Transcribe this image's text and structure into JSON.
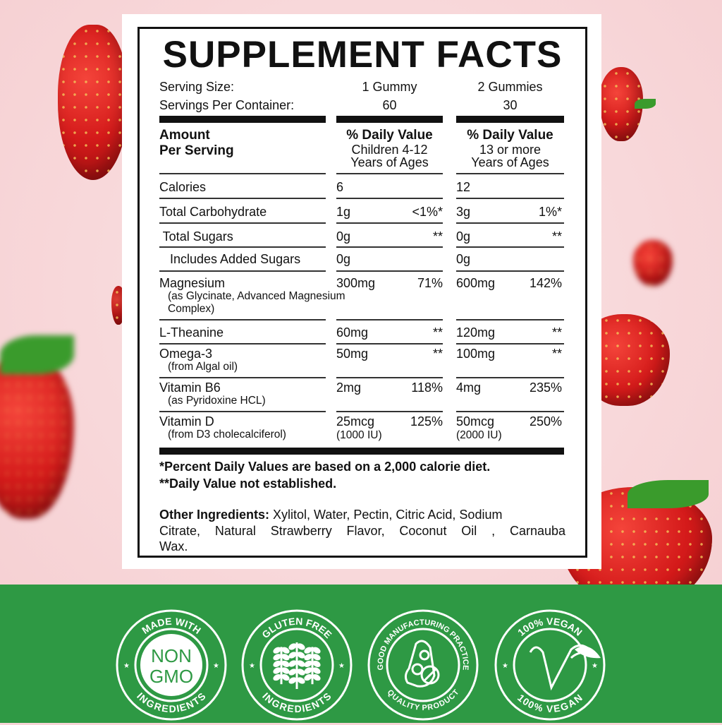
{
  "label": {
    "title": "SUPPLEMENT FACTS",
    "serving_size_label": "Serving Size:",
    "serving_size_children": "1 Gummy",
    "serving_size_adults": "2 Gummies",
    "servings_per_container_label": "Servings Per Container:",
    "servings_children": "60",
    "servings_adults": "30",
    "amount_header_line1": "Amount",
    "amount_header_line2": "Per Serving",
    "children_header": [
      "% Daily Value",
      "Children 4-12",
      "Years of Ages"
    ],
    "adults_header": [
      "% Daily Value",
      "13 or more",
      "Years of Ages"
    ],
    "rows": [
      {
        "name": "Calories",
        "sub": [],
        "c_amt": "6",
        "c_dv": "",
        "c_amt2": "",
        "a_amt": "12",
        "a_dv": "",
        "a_amt2": ""
      },
      {
        "name": "Total Carbohydrate",
        "sub": [],
        "c_amt": "1g",
        "c_dv": "<1%*",
        "c_amt2": "",
        "a_amt": "3g",
        "a_dv": "1%*",
        "a_amt2": ""
      },
      {
        "name": " Total Sugars",
        "sub": [],
        "c_amt": "0g",
        "c_dv": "**",
        "c_amt2": "",
        "a_amt": "0g",
        "a_dv": "**",
        "a_amt2": ""
      },
      {
        "name": "   Includes Added Sugars",
        "sub": [],
        "c_amt": "0g",
        "c_dv": "",
        "c_amt2": "",
        "a_amt": "0g",
        "a_dv": "",
        "a_amt2": ""
      },
      {
        "name": "Magnesium",
        "sub": [
          "(as Glycinate, Advanced Magnesium",
          "Complex)"
        ],
        "c_amt": "300mg",
        "c_dv": "71%",
        "c_amt2": "",
        "a_amt": "600mg",
        "a_dv": "142%",
        "a_amt2": ""
      },
      {
        "name": "L-Theanine",
        "sub": [],
        "c_amt": "60mg",
        "c_dv": "**",
        "c_amt2": "",
        "a_amt": "120mg",
        "a_dv": "**",
        "a_amt2": ""
      },
      {
        "name": "Omega-3",
        "sub": [
          "(from Algal oil)"
        ],
        "c_amt": "50mg",
        "c_dv": "**",
        "c_amt2": "",
        "a_amt": "100mg",
        "a_dv": "**",
        "a_amt2": ""
      },
      {
        "name": "Vitamin B6",
        "sub": [
          "(as Pyridoxine HCL)"
        ],
        "c_amt": "2mg",
        "c_dv": "118%",
        "c_amt2": "",
        "a_amt": "4mg",
        "a_dv": "235%",
        "a_amt2": ""
      },
      {
        "name": "Vitamin D",
        "sub": [
          "(from D3 cholecalciferol)"
        ],
        "c_amt": "25mcg",
        "c_dv": "125%",
        "c_amt2": "(1000 IU)",
        "a_amt": "50mcg",
        "a_dv": "250%",
        "a_amt2": "(2000 IU)"
      }
    ],
    "footnote1": "*Percent Daily Values are based on a 2,000 calorie diet.",
    "footnote2": "**Daily Value not established.",
    "other_ingredients_label": "Other Ingredients:",
    "other_ingredients": [
      " Xylitol, Water, Pectin, Citric Acid, Sodium",
      "Citrate, Natural Strawberry Flavor, Coconut Oil , Carnauba",
      "Wax."
    ]
  },
  "badges": [
    {
      "top": "MADE WITH",
      "bottom": "INGREDIENTS",
      "center": [
        "NON",
        "GMO"
      ],
      "icon": "non-gmo-icon"
    },
    {
      "top": "GLUTEN FREE",
      "bottom": "INGREDIENTS",
      "center": [],
      "icon": "wheat-icon"
    },
    {
      "top": "GOOD MANUFACTURING PRACTICE",
      "bottom": "QUALITY PRODUCT",
      "center": [],
      "icon": "capsules-icon"
    },
    {
      "top": "100% VEGAN",
      "bottom": "100% VEGAN",
      "center": [],
      "icon": "vegan-v-leaf-icon"
    }
  ],
  "colors": {
    "green_band": "#2e9944",
    "background_pink": "#f7d5d7",
    "strawberry_red": "#d41a1a"
  }
}
